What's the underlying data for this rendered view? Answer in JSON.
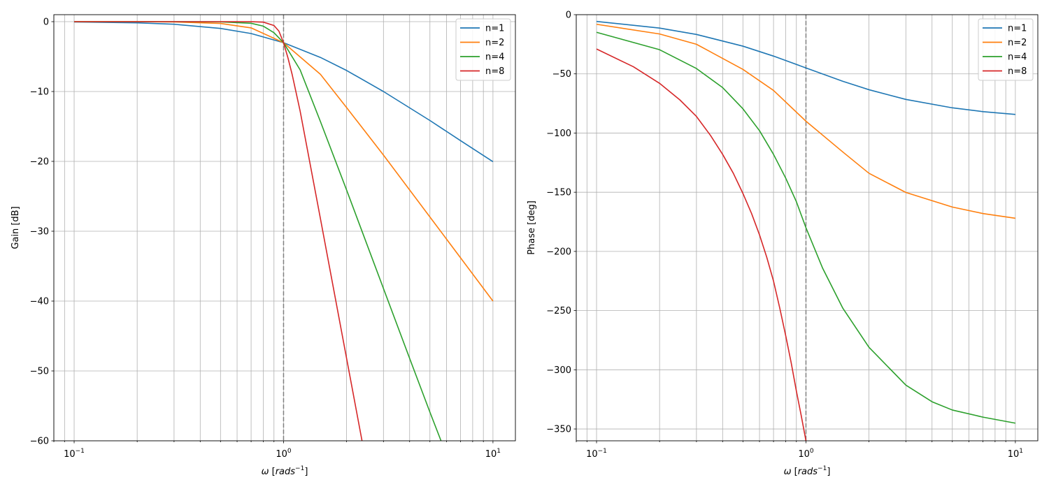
{
  "chart_data": [
    {
      "type": "line",
      "xscale": "log",
      "xlabel": "ω [rads⁻¹]",
      "ylabel": "Gain [dB]",
      "xlim": [
        0.08,
        12.8
      ],
      "ylim": [
        -60,
        1
      ],
      "xtick_labels": [
        {
          "v": 0.1,
          "base": "10",
          "exp": "−1"
        },
        {
          "v": 1,
          "base": "10",
          "exp": "0"
        },
        {
          "v": 10,
          "base": "10",
          "exp": "1"
        }
      ],
      "yticks": [
        0,
        -10,
        -20,
        -30,
        -40,
        -50,
        -60
      ],
      "ytick_labels": [
        "0",
        "−10",
        "−20",
        "−30",
        "−40",
        "−50",
        "−60"
      ],
      "grid": "major+minor",
      "vline": 1,
      "legend": "top-right",
      "series": [
        {
          "name": "n=1",
          "color": "#1f77b4",
          "x": [
            0.1,
            0.2,
            0.3,
            0.5,
            0.7,
            1,
            1.5,
            2,
            3,
            5,
            7,
            10
          ],
          "y": [
            -0.04,
            -0.17,
            -0.37,
            -0.97,
            -1.7,
            -3.01,
            -5.12,
            -6.99,
            -10,
            -14.15,
            -17.03,
            -20.04
          ]
        },
        {
          "name": "n=2",
          "color": "#ff7f0e",
          "x": [
            0.1,
            0.2,
            0.3,
            0.5,
            0.7,
            1,
            1.5,
            2,
            3,
            5,
            7,
            10
          ],
          "y": [
            0,
            -0.01,
            -0.04,
            -0.26,
            -0.89,
            -3.01,
            -7.54,
            -12.3,
            -19.1,
            -27.96,
            -33.8,
            -40
          ]
        },
        {
          "name": "n=4",
          "color": "#2ca02c",
          "x": [
            0.1,
            0.3,
            0.5,
            0.7,
            0.8,
            0.9,
            1,
            1.2,
            1.5,
            2,
            3,
            4,
            5,
            5.65
          ],
          "y": [
            0,
            0,
            -0.03,
            -0.23,
            -0.64,
            -1.58,
            -3.01,
            -6.9,
            -14.3,
            -24.1,
            -38.2,
            -48.2,
            -55.9,
            -60
          ]
        },
        {
          "name": "n=8",
          "color": "#d62728",
          "x": [
            0.1,
            0.5,
            0.7,
            0.8,
            0.9,
            0.95,
            1,
            1.05,
            1.1,
            1.2,
            1.5,
            2,
            2.37
          ],
          "y": [
            0,
            0,
            -0.01,
            -0.07,
            -0.55,
            -1.35,
            -3.01,
            -5.2,
            -7.6,
            -12.8,
            -28.2,
            -48.2,
            -60
          ]
        }
      ]
    },
    {
      "type": "line",
      "xscale": "log",
      "xlabel": "ω [rads⁻¹]",
      "ylabel": "Phase [deg]",
      "xlim": [
        0.08,
        12.8
      ],
      "ylim": [
        -360,
        0
      ],
      "xtick_labels": [
        {
          "v": 0.1,
          "base": "10",
          "exp": "−1"
        },
        {
          "v": 1,
          "base": "10",
          "exp": "0"
        },
        {
          "v": 10,
          "base": "10",
          "exp": "1"
        }
      ],
      "yticks": [
        0,
        -50,
        -100,
        -150,
        -200,
        -250,
        -300,
        -350
      ],
      "ytick_labels": [
        "0",
        "−50",
        "−100",
        "−150",
        "−200",
        "−250",
        "−300",
        "−350"
      ],
      "grid": "major+minor",
      "vline": 1,
      "legend": "top-right",
      "series": [
        {
          "name": "n=1",
          "color": "#1f77b4",
          "x": [
            0.1,
            0.2,
            0.3,
            0.5,
            0.7,
            1,
            1.5,
            2,
            3,
            5,
            7,
            10
          ],
          "y": [
            -5.7,
            -11.3,
            -16.7,
            -26.6,
            -35,
            -45,
            -56.3,
            -63.4,
            -71.6,
            -78.7,
            -81.9,
            -84.3
          ]
        },
        {
          "name": "n=2",
          "color": "#ff7f0e",
          "x": [
            0.1,
            0.2,
            0.3,
            0.5,
            0.7,
            1,
            1.5,
            2,
            3,
            5,
            7,
            10
          ],
          "y": [
            -8.1,
            -16.3,
            -25,
            -46.2,
            -64,
            -90,
            -116,
            -134,
            -150.2,
            -162.5,
            -168,
            -172
          ]
        },
        {
          "name": "n=4",
          "color": "#2ca02c",
          "x": [
            0.1,
            0.2,
            0.3,
            0.4,
            0.5,
            0.6,
            0.7,
            0.8,
            0.9,
            1,
            1.2,
            1.5,
            2,
            3,
            4,
            5,
            7,
            10
          ],
          "y": [
            -14.9,
            -29.6,
            -45.5,
            -61.6,
            -79.5,
            -98,
            -118,
            -138,
            -158,
            -180,
            -214,
            -248,
            -281,
            -313,
            -327,
            -334,
            -340,
            -345.1
          ]
        },
        {
          "name": "n=8",
          "color": "#d62728",
          "x": [
            0.1,
            0.15,
            0.2,
            0.25,
            0.3,
            0.35,
            0.4,
            0.45,
            0.5,
            0.55,
            0.6,
            0.65,
            0.7,
            0.75,
            0.8,
            0.85,
            0.9,
            0.95,
            1
          ],
          "y": [
            -29,
            -44,
            -58,
            -72,
            -86,
            -102,
            -118,
            -134,
            -151,
            -168,
            -186,
            -205,
            -225,
            -248,
            -271,
            -294,
            -318,
            -339,
            -360
          ]
        }
      ]
    }
  ]
}
